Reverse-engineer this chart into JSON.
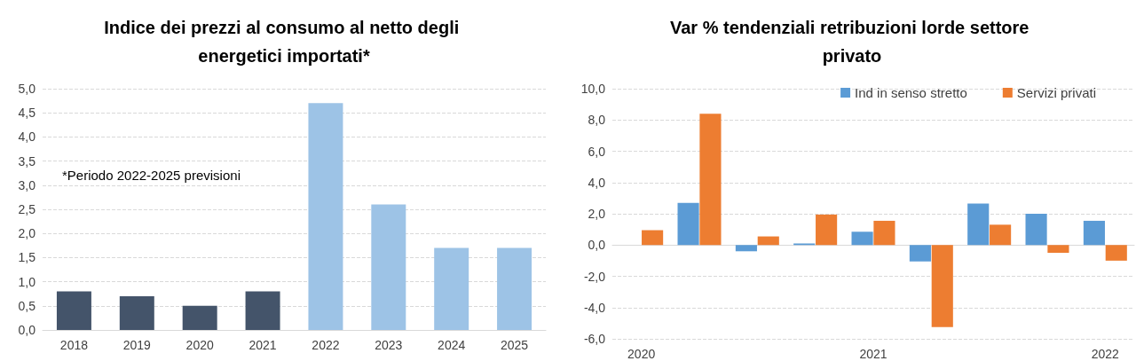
{
  "chart_data": [
    {
      "type": "bar",
      "title": "Indice dei prezzi al consumo al netto degli energetici importati*",
      "categories": [
        "2018",
        "2019",
        "2020",
        "2021",
        "2022",
        "2023",
        "2024",
        "2025"
      ],
      "values": [
        0.8,
        0.7,
        0.5,
        0.8,
        4.7,
        2.6,
        1.7,
        1.7
      ],
      "colors": [
        "#44546a",
        "#44546a",
        "#44546a",
        "#44546a",
        "#9dc3e6",
        "#9dc3e6",
        "#9dc3e6",
        "#9dc3e6"
      ],
      "ylim": [
        0,
        5
      ],
      "yticks": [
        {
          "value": 0,
          "label": "0,0"
        },
        {
          "value": 0.5,
          "label": "0,5"
        },
        {
          "value": 1,
          "label": "1,0"
        },
        {
          "value": 1.5,
          "label": "1,5"
        },
        {
          "value": 2,
          "label": "2,0"
        },
        {
          "value": 2.5,
          "label": "2,5"
        },
        {
          "value": 3,
          "label": "3,0"
        },
        {
          "value": 3.5,
          "label": "3,5"
        },
        {
          "value": 4,
          "label": "4,0"
        },
        {
          "value": 4.5,
          "label": "4,5"
        },
        {
          "value": 5,
          "label": "5,0"
        }
      ],
      "annotations": [
        "*Periodo 2022-2025 previsioni"
      ],
      "grid": "y",
      "legend": false
    },
    {
      "type": "bar",
      "title": "Var % tendenziali retribuzioni lorde settore privato",
      "categories": [
        "2020",
        null,
        null,
        null,
        "2021",
        null,
        null,
        null,
        "2022"
      ],
      "series": [
        {
          "name": "Ind in senso stretto",
          "color": "#5b9bd5",
          "values": [
            null,
            2.7,
            -0.4,
            0.1,
            0.85,
            -1.05,
            2.65,
            2.0,
            1.55
          ]
        },
        {
          "name": "Servizi privati",
          "color": "#ed7d31",
          "values": [
            0.95,
            8.4,
            0.55,
            1.95,
            1.55,
            -5.25,
            1.3,
            -0.5,
            -1.0
          ]
        }
      ],
      "ylim": [
        -6,
        10
      ],
      "yticks": [
        {
          "value": -6,
          "label": "-6,0"
        },
        {
          "value": -4,
          "label": "-4,0"
        },
        {
          "value": -2,
          "label": "-2,0"
        },
        {
          "value": 0,
          "label": "0,0"
        },
        {
          "value": 2,
          "label": "2,0"
        },
        {
          "value": 4,
          "label": "4,0"
        },
        {
          "value": 6,
          "label": "6,0"
        },
        {
          "value": 8,
          "label": "8,0"
        },
        {
          "value": 10,
          "label": "10,0"
        }
      ],
      "grid": "y",
      "legend": "top right"
    }
  ]
}
